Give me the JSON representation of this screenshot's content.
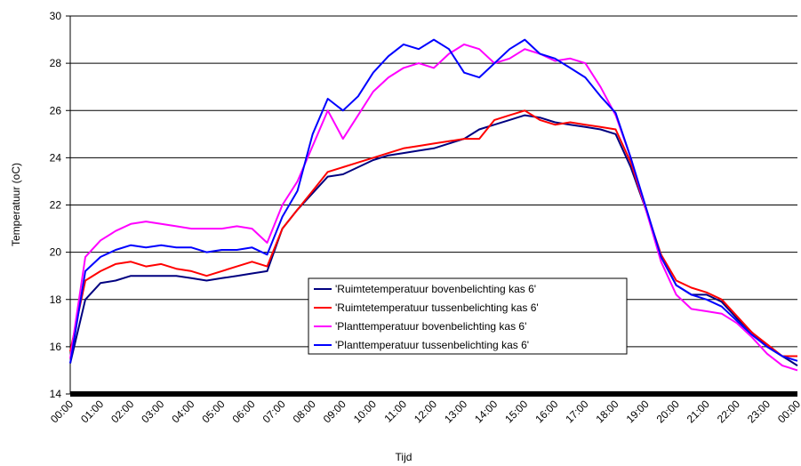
{
  "chart_data": {
    "type": "line",
    "x_label": "Tijd",
    "y_label": "Temperatuur (oC)",
    "categories": [
      "00:00",
      null,
      "01:00",
      null,
      "02:00",
      null,
      "03:00",
      null,
      "04:00",
      null,
      "05:00",
      null,
      "06:00",
      null,
      "07:00",
      null,
      "08:00",
      null,
      "09:00",
      null,
      "10:00",
      null,
      "11:00",
      null,
      "12:00",
      null,
      "13:00",
      null,
      "14:00",
      null,
      "15:00",
      null,
      "16:00",
      null,
      "17:00",
      null,
      "18:00",
      null,
      "19:00",
      null,
      "20:00",
      null,
      "21:00",
      null,
      "22:00",
      null,
      "23:00",
      null,
      "00:00"
    ],
    "series": [
      {
        "name": "'Ruimtetemperatuur bovenbelichting kas 6'",
        "color": "#000080",
        "values": [
          15.3,
          18.0,
          18.7,
          18.8,
          19.0,
          19.0,
          19.0,
          19.0,
          18.9,
          18.8,
          18.9,
          19.0,
          19.1,
          19.2,
          21.0,
          21.8,
          22.5,
          23.2,
          23.3,
          23.6,
          23.9,
          24.1,
          24.2,
          24.3,
          24.4,
          24.6,
          24.8,
          25.2,
          25.4,
          25.6,
          25.8,
          25.7,
          25.5,
          25.4,
          25.3,
          25.2,
          25.0,
          23.6,
          21.8,
          19.8,
          18.6,
          18.2,
          18.2,
          17.9,
          17.2,
          16.6,
          16.0,
          15.6,
          15.2
        ]
      },
      {
        "name": "'Ruimtetemperatuur tussenbelichting kas 6'",
        "color": "#FF0000",
        "values": [
          15.8,
          18.8,
          19.2,
          19.5,
          19.6,
          19.4,
          19.5,
          19.3,
          19.2,
          19.0,
          19.2,
          19.4,
          19.6,
          19.4,
          21.0,
          21.8,
          22.6,
          23.4,
          23.6,
          23.8,
          24.0,
          24.2,
          24.4,
          24.5,
          24.6,
          24.7,
          24.8,
          24.8,
          25.6,
          25.8,
          26.0,
          25.6,
          25.4,
          25.5,
          25.4,
          25.3,
          25.2,
          23.8,
          21.8,
          19.9,
          18.8,
          18.5,
          18.3,
          18.0,
          17.3,
          16.6,
          16.1,
          15.6,
          15.6
        ]
      },
      {
        "name": "'Planttemperatuur bovenbelichting kas 6'",
        "color": "#FF00FF",
        "values": [
          15.5,
          19.8,
          20.5,
          20.9,
          21.2,
          21.3,
          21.2,
          21.1,
          21.0,
          21.0,
          21.0,
          21.1,
          21.0,
          20.4,
          22.0,
          23.0,
          24.5,
          26.0,
          24.8,
          25.8,
          26.8,
          27.4,
          27.8,
          28.0,
          27.8,
          28.4,
          28.8,
          28.6,
          28.0,
          28.2,
          28.6,
          28.4,
          28.1,
          28.2,
          28.0,
          27.0,
          25.8,
          24.0,
          21.8,
          19.6,
          18.2,
          17.6,
          17.5,
          17.4,
          17.0,
          16.4,
          15.7,
          15.2,
          15.0
        ]
      },
      {
        "name": "'Planttemperatuur tussenbelichting kas 6'",
        "color": "#0000FF",
        "values": [
          15.3,
          19.2,
          19.8,
          20.1,
          20.3,
          20.2,
          20.3,
          20.2,
          20.2,
          20.0,
          20.1,
          20.1,
          20.2,
          19.9,
          21.5,
          22.6,
          25.0,
          26.5,
          26.0,
          26.6,
          27.6,
          28.3,
          28.8,
          28.6,
          29.0,
          28.6,
          27.6,
          27.4,
          28.0,
          28.6,
          29.0,
          28.4,
          28.2,
          27.8,
          27.4,
          26.6,
          25.9,
          24.0,
          21.9,
          19.8,
          18.6,
          18.2,
          18.0,
          17.7,
          17.1,
          16.5,
          16.0,
          15.6,
          15.4
        ]
      }
    ],
    "ylim": [
      14,
      30
    ],
    "yticks": [
      14,
      16,
      18,
      20,
      22,
      24,
      26,
      28,
      30
    ],
    "grid": true
  }
}
